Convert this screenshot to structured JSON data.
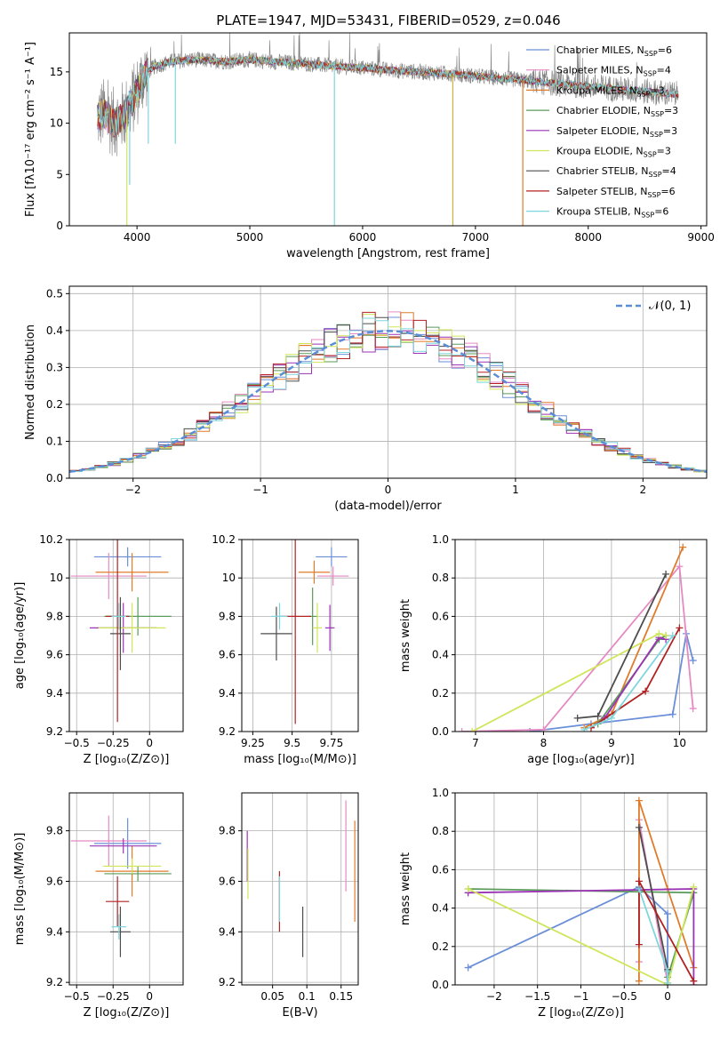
{
  "chart_data": [
    {
      "id": "spectrum",
      "type": "line",
      "title": "PLATE=1947, MJD=53431, FIBERID=0529, z=0.046",
      "xlabel": "wavelength [Angstrom, rest frame]",
      "ylabel": "Flux [fλ10⁻¹⁷ erg cm⁻² s⁻¹ A⁻¹]",
      "xlim": [
        3400,
        9050
      ],
      "ylim": [
        0,
        18.8
      ],
      "xticks": [
        4000,
        5000,
        6000,
        7000,
        8000,
        9000
      ],
      "yticks": [
        0,
        5,
        10,
        15
      ],
      "grid": false,
      "legend_position": "top-right",
      "legend": [
        {
          "label": "Chabrier MILES, N_SSP=6",
          "color": "#6a8fd8"
        },
        {
          "label": "Salpeter MILES, N_SSP=4",
          "color": "#e58ac3"
        },
        {
          "label": "Kroupa MILES, N_SSP=3",
          "color": "#e07b2a"
        },
        {
          "label": "Chabrier ELODIE, N_SSP=3",
          "color": "#5b9b5b"
        },
        {
          "label": "Salpeter ELODIE, N_SSP=3",
          "color": "#9a33b5"
        },
        {
          "label": "Kroupa ELODIE, N_SSP=3",
          "color": "#cfe65a"
        },
        {
          "label": "Chabrier STELIB, N_SSP=4",
          "color": "#4d4d4d"
        },
        {
          "label": "Salpeter STELIB, N_SSP=6",
          "color": "#b22222"
        },
        {
          "label": "Kroupa STELIB, N_SSP=6",
          "color": "#7fd6dd"
        }
      ],
      "data_color": "#808080",
      "continuum": [
        [
          3650,
          10.5
        ],
        [
          3700,
          11
        ],
        [
          3800,
          10
        ],
        [
          3900,
          11
        ],
        [
          4000,
          13
        ],
        [
          4050,
          14.5
        ],
        [
          4150,
          15.5
        ],
        [
          4300,
          16
        ],
        [
          4500,
          16.2
        ],
        [
          4800,
          16
        ],
        [
          5000,
          16.2
        ],
        [
          5200,
          16
        ],
        [
          5500,
          15.8
        ],
        [
          5800,
          15.5
        ],
        [
          6000,
          15.4
        ],
        [
          6200,
          15.2
        ],
        [
          6500,
          15.0
        ],
        [
          6800,
          14.8
        ],
        [
          7000,
          14.6
        ],
        [
          7200,
          14.4
        ],
        [
          7400,
          14.2
        ],
        [
          7600,
          14.0
        ],
        [
          7800,
          13.8
        ],
        [
          8000,
          13.6
        ],
        [
          8200,
          13.4
        ],
        [
          8400,
          13.2
        ],
        [
          8600,
          13.0
        ],
        [
          8800,
          12.8
        ]
      ],
      "dips": [
        [
          3910,
          0
        ],
        [
          3935,
          4
        ],
        [
          4100,
          8
        ],
        [
          4340,
          8
        ],
        [
          5750,
          0
        ],
        [
          6800,
          0
        ],
        [
          7420,
          0
        ]
      ]
    },
    {
      "id": "residuals",
      "type": "bar",
      "xlabel": "(data-model)/error",
      "ylabel": "Normed distribution",
      "xlim": [
        -2.5,
        2.5
      ],
      "ylim": [
        0,
        0.52
      ],
      "xticks": [
        -2,
        -1,
        0,
        1,
        2
      ],
      "yticks": [
        0.0,
        0.1,
        0.2,
        0.3,
        0.4,
        0.5
      ],
      "grid": true,
      "reference_curve": {
        "label": "N(0,1)",
        "mean": 0,
        "sigma": 1,
        "color": "#5b8dd6"
      },
      "bin_width": 0.1
    },
    {
      "id": "age_vs_Z",
      "type": "scatter",
      "xlabel": "Z [log₁₀(Z/Z⊙)]",
      "ylabel": "age  [log₁₀(age/yr)]",
      "xlim": [
        -0.55,
        0.23
      ],
      "ylim": [
        9.2,
        10.2
      ],
      "xticks": [
        -0.5,
        -0.25,
        0.0
      ],
      "yticks": [
        9.2,
        9.4,
        9.6,
        9.8,
        10.0,
        10.2
      ],
      "grid": true,
      "points": [
        {
          "x": -0.15,
          "y": 10.11,
          "xerr": 0.23,
          "yerr": 0.05,
          "color": "#6a8fd8"
        },
        {
          "x": -0.28,
          "y": 10.01,
          "xerr": 0.26,
          "yerr": 0.12,
          "color": "#e58ac3"
        },
        {
          "x": -0.12,
          "y": 10.03,
          "xerr": 0.25,
          "yerr": 0.1,
          "color": "#e07b2a"
        },
        {
          "x": -0.08,
          "y": 9.8,
          "xerr": 0.23,
          "yerr": 0.1,
          "color": "#5b9b5b"
        },
        {
          "x": -0.18,
          "y": 9.74,
          "xerr": 0.23,
          "yerr": 0.13,
          "color": "#9a33b5"
        },
        {
          "x": -0.12,
          "y": 9.74,
          "xerr": 0.23,
          "yerr": 0.13,
          "color": "#cfe65a"
        },
        {
          "x": -0.2,
          "y": 9.71,
          "xerr": 0.07,
          "yerr": 0.19,
          "color": "#4d4d4d"
        },
        {
          "x": -0.22,
          "y": 9.8,
          "xerr": 0.08,
          "yerr": 0.55,
          "color": "#b22222"
        },
        {
          "x": -0.21,
          "y": 9.8,
          "xerr": 0.05,
          "yerr": 0.07,
          "color": "#7fd6dd"
        }
      ]
    },
    {
      "id": "age_vs_mass",
      "type": "scatter",
      "xlabel": "mass [log₁₀(M/M⊙)]",
      "ylabel": "",
      "xlim": [
        9.18,
        9.92
      ],
      "ylim": [
        9.2,
        10.2
      ],
      "xticks": [
        9.25,
        9.5,
        9.75
      ],
      "yticks": [
        9.2,
        9.4,
        9.6,
        9.8,
        10.0,
        10.2
      ],
      "grid": true,
      "points": [
        {
          "x": 9.75,
          "y": 10.11,
          "xerr": 0.1,
          "yerr": 0.05,
          "color": "#6a8fd8"
        },
        {
          "x": 9.76,
          "y": 10.01,
          "xerr": 0.1,
          "yerr": 0.05,
          "color": "#e58ac3"
        },
        {
          "x": 9.64,
          "y": 10.03,
          "xerr": 0.1,
          "yerr": 0.06,
          "color": "#e07b2a"
        },
        {
          "x": 9.63,
          "y": 9.8,
          "xerr": 0.03,
          "yerr": 0.15,
          "color": "#5b9b5b"
        },
        {
          "x": 9.74,
          "y": 9.74,
          "xerr": 0.03,
          "yerr": 0.12,
          "color": "#9a33b5"
        },
        {
          "x": 9.66,
          "y": 9.74,
          "xerr": 0.03,
          "yerr": 0.13,
          "color": "#cfe65a"
        },
        {
          "x": 9.4,
          "y": 9.71,
          "xerr": 0.1,
          "yerr": 0.14,
          "color": "#4d4d4d"
        },
        {
          "x": 9.52,
          "y": 9.8,
          "xerr": 0.1,
          "yerr": 0.56,
          "color": "#b22222"
        },
        {
          "x": 9.42,
          "y": 9.8,
          "xerr": 0.05,
          "yerr": 0.07,
          "color": "#7fd6dd"
        }
      ]
    },
    {
      "id": "weight_vs_age",
      "type": "line",
      "xlabel": "age  [log₁₀(age/yr)]",
      "ylabel": "mass weight",
      "xlim": [
        6.7,
        10.4
      ],
      "ylim": [
        0,
        1.0
      ],
      "xticks": [
        7,
        8,
        9,
        10
      ],
      "yticks": [
        0.0,
        0.2,
        0.4,
        0.6,
        0.8,
        1.0
      ],
      "grid": true,
      "series": [
        {
          "color": "#6a8fd8",
          "points": [
            [
              7.8,
              0.0
            ],
            [
              8.7,
              0.04
            ],
            [
              9.9,
              0.09
            ],
            [
              10.1,
              0.51
            ],
            [
              10.2,
              0.37
            ]
          ]
        },
        {
          "color": "#e58ac3",
          "points": [
            [
              6.8,
              0.0
            ],
            [
              8.0,
              0.01
            ],
            [
              10.0,
              0.86
            ],
            [
              10.2,
              0.12
            ]
          ]
        },
        {
          "color": "#e07b2a",
          "points": [
            [
              8.6,
              0.02
            ],
            [
              9.0,
              0.09
            ],
            [
              10.05,
              0.96
            ]
          ]
        },
        {
          "color": "#5b9b5b",
          "points": [
            [
              8.8,
              0.04
            ],
            [
              9.7,
              0.48
            ],
            [
              9.8,
              0.5
            ]
          ]
        },
        {
          "color": "#9a33b5",
          "points": [
            [
              8.9,
              0.07
            ],
            [
              9.7,
              0.49
            ],
            [
              9.8,
              0.48
            ]
          ]
        },
        {
          "color": "#cfe65a",
          "points": [
            [
              6.95,
              0.0
            ],
            [
              9.7,
              0.51
            ],
            [
              9.8,
              0.5
            ]
          ]
        },
        {
          "color": "#4d4d4d",
          "points": [
            [
              8.5,
              0.07
            ],
            [
              8.8,
              0.08
            ],
            [
              9.8,
              0.82
            ]
          ]
        },
        {
          "color": "#b22222",
          "points": [
            [
              8.7,
              0.02
            ],
            [
              9.5,
              0.21
            ],
            [
              10.0,
              0.54
            ]
          ]
        },
        {
          "color": "#7fd6dd",
          "points": [
            [
              8.6,
              0.01
            ],
            [
              9.0,
              0.07
            ],
            [
              9.9,
              0.5
            ]
          ]
        }
      ]
    },
    {
      "id": "mass_vs_Z",
      "type": "scatter",
      "xlabel": "Z [log₁₀(Z/Z⊙)]",
      "ylabel": "mass [log₁₀(M/M⊙)]",
      "xlim": [
        -0.55,
        0.23
      ],
      "ylim": [
        9.19,
        9.95
      ],
      "xticks": [
        -0.5,
        -0.25,
        0.0
      ],
      "yticks": [
        9.2,
        9.4,
        9.6,
        9.8
      ],
      "grid": true,
      "points": [
        {
          "x": -0.15,
          "y": 9.75,
          "xerr": 0.23,
          "yerr": 0.1,
          "color": "#6a8fd8"
        },
        {
          "x": -0.28,
          "y": 9.76,
          "xerr": 0.26,
          "yerr": 0.1,
          "color": "#e58ac3"
        },
        {
          "x": -0.12,
          "y": 9.64,
          "xerr": 0.25,
          "yerr": 0.1,
          "color": "#e07b2a"
        },
        {
          "x": -0.08,
          "y": 9.63,
          "xerr": 0.23,
          "yerr": 0.03,
          "color": "#5b9b5b"
        },
        {
          "x": -0.18,
          "y": 9.74,
          "xerr": 0.23,
          "yerr": 0.03,
          "color": "#9a33b5"
        },
        {
          "x": -0.12,
          "y": 9.66,
          "xerr": 0.2,
          "yerr": 0.03,
          "color": "#cfe65a"
        },
        {
          "x": -0.2,
          "y": 9.4,
          "xerr": 0.07,
          "yerr": 0.1,
          "color": "#4d4d4d"
        },
        {
          "x": -0.22,
          "y": 9.52,
          "xerr": 0.08,
          "yerr": 0.1,
          "color": "#b22222"
        },
        {
          "x": -0.21,
          "y": 9.42,
          "xerr": 0.05,
          "yerr": 0.05,
          "color": "#7fd6dd"
        }
      ]
    },
    {
      "id": "mass_vs_ebv",
      "type": "scatter",
      "xlabel": "E(B-V)",
      "ylabel": "",
      "xlim": [
        0.005,
        0.175
      ],
      "ylim": [
        9.19,
        9.95
      ],
      "xticks": [
        0.05,
        0.1,
        0.15
      ],
      "yticks": [
        9.2,
        9.4,
        9.6,
        9.8
      ],
      "grid": true,
      "points": [
        {
          "x": 0.013,
          "y": 9.7,
          "yerr": 0.1,
          "color": "#9a33b5"
        },
        {
          "x": 0.014,
          "y": 9.63,
          "yerr": 0.1,
          "color": "#cfe65a"
        },
        {
          "x": 0.06,
          "y": 9.52,
          "yerr": 0.12,
          "color": "#b22222"
        },
        {
          "x": 0.06,
          "y": 9.53,
          "yerr": 0.09,
          "color": "#7fd6dd"
        },
        {
          "x": 0.094,
          "y": 9.4,
          "yerr": 0.1,
          "color": "#4d4d4d"
        },
        {
          "x": 0.157,
          "y": 9.74,
          "yerr": 0.18,
          "color": "#e58ac3"
        },
        {
          "x": 0.17,
          "y": 9.64,
          "yerr": 0.2,
          "color": "#e07b2a"
        }
      ]
    },
    {
      "id": "weight_vs_Z",
      "type": "line",
      "xlabel": "Z [log₁₀(Z/Z⊙)]",
      "ylabel": "mass weight",
      "xlim": [
        -2.45,
        0.45
      ],
      "ylim": [
        0,
        1.0
      ],
      "xticks": [
        -2.0,
        -1.5,
        -1.0,
        -0.5,
        0.0
      ],
      "yticks": [
        0.0,
        0.2,
        0.4,
        0.6,
        0.8,
        1.0
      ],
      "grid": true,
      "series": [
        {
          "color": "#6a8fd8",
          "points": [
            [
              -2.3,
              0.09
            ],
            [
              -0.33,
              0.51
            ],
            [
              0.0,
              0.37
            ],
            [
              0.0,
              0.0
            ]
          ]
        },
        {
          "color": "#e58ac3",
          "points": [
            [
              -0.33,
              0.12
            ],
            [
              -0.33,
              0.86
            ],
            [
              0.0,
              0.01
            ]
          ]
        },
        {
          "color": "#e07b2a",
          "points": [
            [
              -0.33,
              0.02
            ],
            [
              -0.33,
              0.96
            ],
            [
              0.0,
              0.5
            ],
            [
              0.3,
              0.09
            ]
          ]
        },
        {
          "color": "#5b9b5b",
          "points": [
            [
              -2.3,
              0.5
            ],
            [
              0.3,
              0.48
            ],
            [
              0.0,
              0.04
            ]
          ]
        },
        {
          "color": "#9a33b5",
          "points": [
            [
              -2.3,
              0.48
            ],
            [
              0.3,
              0.5
            ],
            [
              0.3,
              0.0
            ]
          ]
        },
        {
          "color": "#cfe65a",
          "points": [
            [
              -2.3,
              0.5
            ],
            [
              0.0,
              0.0
            ],
            [
              0.3,
              0.51
            ]
          ]
        },
        {
          "color": "#4d4d4d",
          "points": [
            [
              -0.33,
              0.82
            ],
            [
              0.0,
              0.08
            ],
            [
              0.0,
              0.07
            ]
          ]
        },
        {
          "color": "#b22222",
          "points": [
            [
              -0.33,
              0.21
            ],
            [
              -0.33,
              0.54
            ],
            [
              0.3,
              0.02
            ]
          ]
        },
        {
          "color": "#7fd6dd",
          "points": [
            [
              -0.33,
              0.5
            ],
            [
              0.0,
              0.07
            ],
            [
              0.0,
              0.01
            ]
          ]
        }
      ]
    }
  ]
}
